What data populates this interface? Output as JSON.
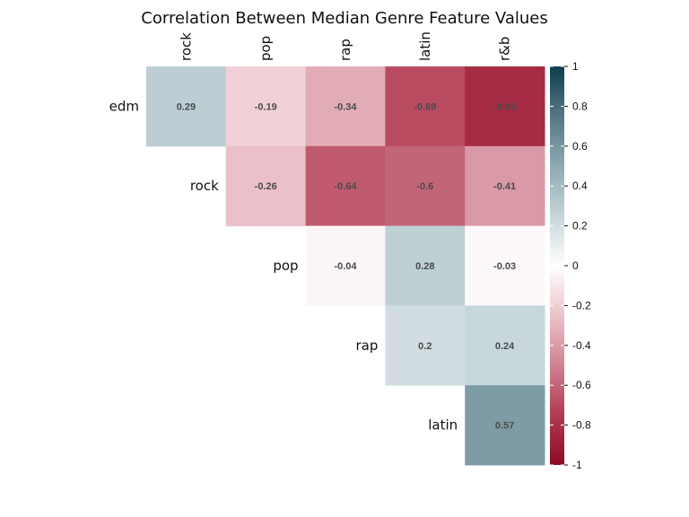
{
  "chart_data": {
    "type": "heatmap",
    "title": "Correlation Between Median Genre Feature Values",
    "row_labels": [
      "edm",
      "rock",
      "pop",
      "rap",
      "latin"
    ],
    "col_labels": [
      "rock",
      "pop",
      "rap",
      "latin",
      "r&b"
    ],
    "cells": [
      {
        "row": "edm",
        "col": "rock",
        "value": 0.29,
        "label": "0.29"
      },
      {
        "row": "edm",
        "col": "pop",
        "value": -0.19,
        "label": "-0.19"
      },
      {
        "row": "edm",
        "col": "rap",
        "value": -0.34,
        "label": "-0.34"
      },
      {
        "row": "edm",
        "col": "latin",
        "value": -0.69,
        "label": "-0.69"
      },
      {
        "row": "edm",
        "col": "r&b",
        "value": -0.83,
        "label": "-0.83"
      },
      {
        "row": "rock",
        "col": "pop",
        "value": -0.26,
        "label": "-0.26"
      },
      {
        "row": "rock",
        "col": "rap",
        "value": -0.64,
        "label": "-0.64"
      },
      {
        "row": "rock",
        "col": "latin",
        "value": -0.6,
        "label": "-0.6"
      },
      {
        "row": "rock",
        "col": "r&b",
        "value": -0.41,
        "label": "-0.41"
      },
      {
        "row": "pop",
        "col": "rap",
        "value": -0.04,
        "label": "-0.04"
      },
      {
        "row": "pop",
        "col": "latin",
        "value": 0.28,
        "label": "0.28"
      },
      {
        "row": "pop",
        "col": "r&b",
        "value": -0.03,
        "label": "-0.03"
      },
      {
        "row": "rap",
        "col": "latin",
        "value": 0.2,
        "label": "0.2"
      },
      {
        "row": "rap",
        "col": "r&b",
        "value": 0.24,
        "label": "0.24"
      },
      {
        "row": "latin",
        "col": "r&b",
        "value": 0.57,
        "label": "0.57"
      }
    ],
    "colorbar": {
      "range": [
        -1,
        1
      ],
      "ticks": [
        1,
        0.8,
        0.6,
        0.4,
        0.2,
        0,
        -0.2,
        -0.4,
        -0.6,
        -0.8,
        -1
      ],
      "tick_labels": [
        "1",
        "0.8",
        "0.6",
        "0.4",
        "0.2",
        "0",
        "-0.2",
        "-0.4",
        "-0.6",
        "-0.8",
        "-1"
      ],
      "colors": {
        "negative": "#67001f",
        "zero": "#ffffff",
        "positive": "#053061"
      },
      "placement": "right"
    },
    "grid": false,
    "legend": "colorbar-right"
  }
}
